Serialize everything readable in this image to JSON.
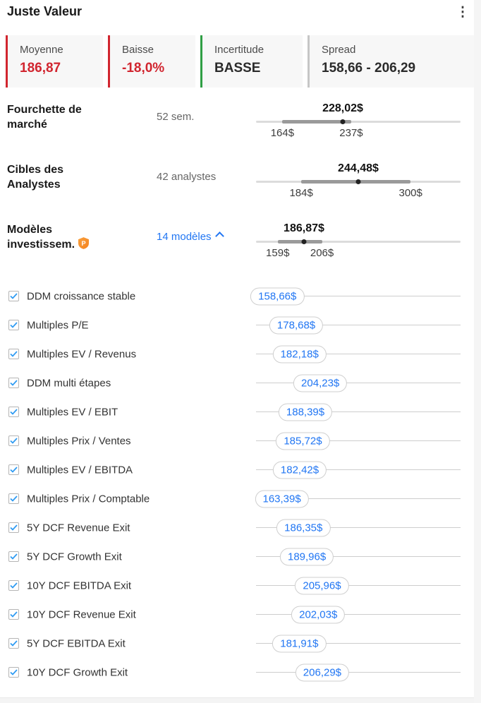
{
  "header": {
    "title": "Juste Valeur"
  },
  "cards": [
    {
      "label": "Moyenne",
      "value": "186,87",
      "accent": "#d1252f",
      "value_color": "#d1252f"
    },
    {
      "label": "Baisse",
      "value": "-18,0%",
      "accent": "#d1252f",
      "value_color": "#d1252f"
    },
    {
      "label": "Incertitude",
      "value": "BASSE",
      "accent": "#2f9e44",
      "value_color": "#2b2b2b"
    },
    {
      "label": "Spread",
      "value": "158,66 - 206,29",
      "accent": "#c6c6c6",
      "value_color": "#2b2b2b"
    }
  ],
  "scale": {
    "min": 136,
    "max": 353
  },
  "ranges": [
    {
      "label": "Fourchette de marché",
      "meta": "52 sem.",
      "meta_type": "text",
      "pro_badge": false,
      "value": 228.02,
      "value_label": "228,02$",
      "low": 164,
      "high": 237,
      "low_label": "164$",
      "high_label": "237$"
    },
    {
      "label": "Cibles des Analystes",
      "meta": "42 analystes",
      "meta_type": "text",
      "pro_badge": false,
      "value": 244.48,
      "value_label": "244,48$",
      "low": 184,
      "high": 300,
      "low_label": "184$",
      "high_label": "300$"
    },
    {
      "label": "Modèles investissem.",
      "meta": "14 modèles",
      "meta_type": "link",
      "pro_badge": true,
      "value": 186.87,
      "value_label": "186,87$",
      "low": 159,
      "high": 206,
      "low_label": "159$",
      "high_label": "206$"
    }
  ],
  "models": {
    "items": [
      {
        "label": "DDM croissance stable",
        "value": 158.66,
        "value_label": "158,66$",
        "checked": true
      },
      {
        "label": "Multiples P/E",
        "value": 178.68,
        "value_label": "178,68$",
        "checked": true
      },
      {
        "label": "Multiples EV / Revenus",
        "value": 182.18,
        "value_label": "182,18$",
        "checked": true
      },
      {
        "label": "DDM multi étapes",
        "value": 204.23,
        "value_label": "204,23$",
        "checked": true
      },
      {
        "label": "Multiples EV / EBIT",
        "value": 188.39,
        "value_label": "188,39$",
        "checked": true
      },
      {
        "label": "Multiples Prix / Ventes",
        "value": 185.72,
        "value_label": "185,72$",
        "checked": true
      },
      {
        "label": "Multiples EV / EBITDA",
        "value": 182.42,
        "value_label": "182,42$",
        "checked": true
      },
      {
        "label": "Multiples Prix / Comptable",
        "value": 163.39,
        "value_label": "163,39$",
        "checked": true
      },
      {
        "label": "5Y DCF Revenue Exit",
        "value": 186.35,
        "value_label": "186,35$",
        "checked": true
      },
      {
        "label": "5Y DCF Growth Exit",
        "value": 189.96,
        "value_label": "189,96$",
        "checked": true
      },
      {
        "label": "10Y DCF EBITDA Exit",
        "value": 205.96,
        "value_label": "205,96$",
        "checked": true
      },
      {
        "label": "10Y DCF Revenue Exit",
        "value": 202.03,
        "value_label": "202,03$",
        "checked": true
      },
      {
        "label": "5Y DCF EBITDA Exit",
        "value": 181.91,
        "value_label": "181,91$",
        "checked": true
      },
      {
        "label": "10Y DCF Growth Exit",
        "value": 206.29,
        "value_label": "206,29$",
        "checked": true
      }
    ]
  },
  "colors": {
    "link_blue": "#2176f3",
    "check_blue": "#2f9bf2",
    "pro_orange": "#f5821f"
  }
}
